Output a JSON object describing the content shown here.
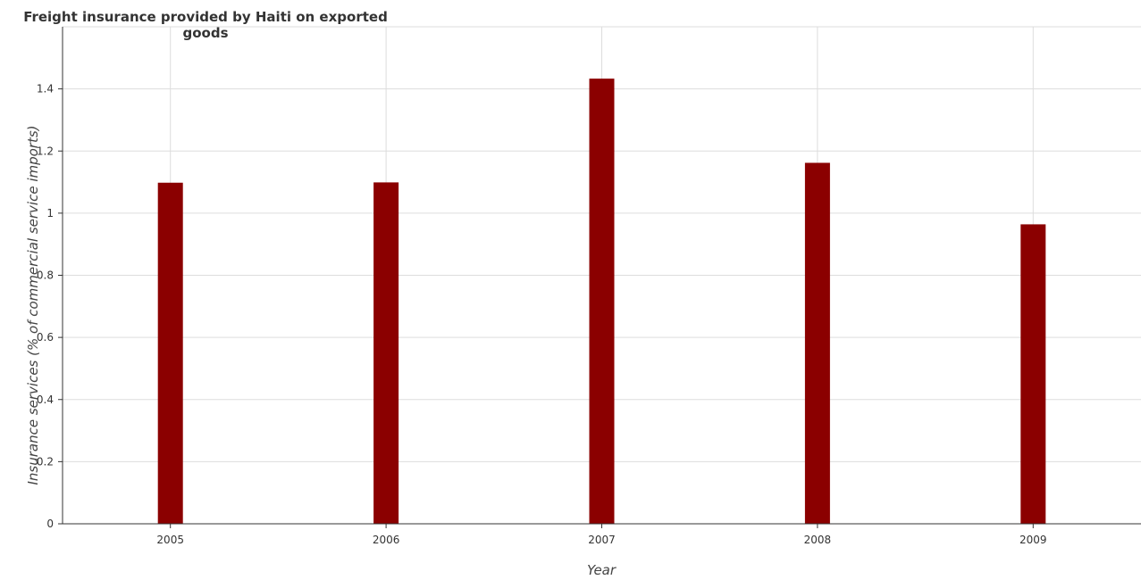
{
  "chart_data": {
    "type": "bar",
    "title": "Freight insurance provided by Haiti on exported goods",
    "xlabel": "Year",
    "ylabel": "Insurance services (% of commercial service imports)",
    "categories": [
      "2005",
      "2006",
      "2007",
      "2008",
      "2009"
    ],
    "values": [
      1.098,
      1.099,
      1.433,
      1.162,
      0.964
    ],
    "ylim": [
      0,
      1.6
    ],
    "yticks": [
      0,
      0.2,
      0.4,
      0.6,
      0.8,
      1,
      1.2,
      1.4
    ],
    "ytick_labels": [
      "0",
      "0.2",
      "0.4",
      "0.6",
      "0.8",
      "1",
      "1.2",
      "1.4"
    ],
    "grid": true,
    "bar_color": "#8b0000",
    "grid_color": "#dddddd"
  }
}
